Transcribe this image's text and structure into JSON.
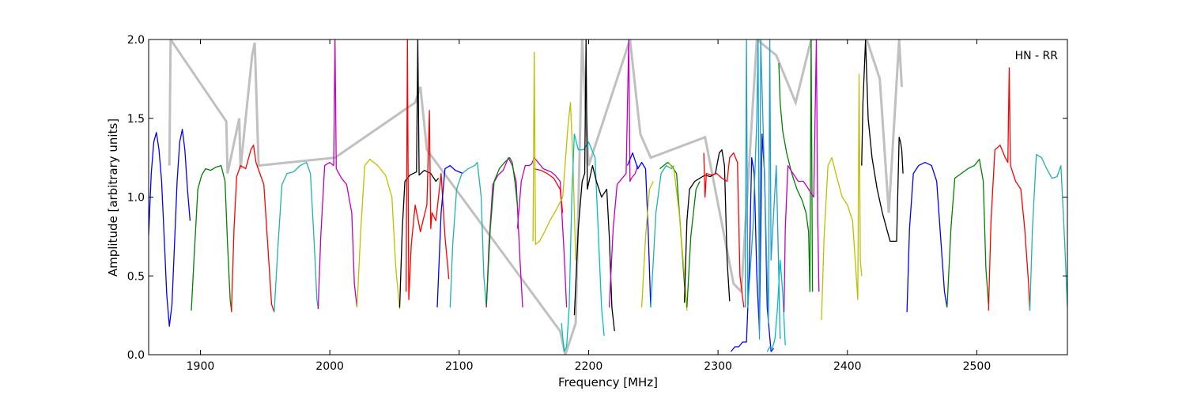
{
  "chart_data": {
    "type": "line",
    "title": "",
    "xlabel": "Frequency [MHz]",
    "ylabel": "Amplitude [arbitrary units]",
    "xlim": [
      1860,
      2570
    ],
    "ylim": [
      0.0,
      2.0
    ],
    "xticks": [
      1900,
      2000,
      2100,
      2200,
      2300,
      2400,
      2500
    ],
    "xtick_labels": [
      "1900",
      "2000",
      "2100",
      "2200",
      "2300",
      "2400",
      "2500"
    ],
    "yticks": [
      0.0,
      0.5,
      1.0,
      1.5,
      2.0
    ],
    "ytick_labels": [
      "0.0",
      "0.5",
      "1.0",
      "1.5",
      "2.0"
    ],
    "annotation": "HN - RR",
    "grid": false,
    "legend": "none",
    "background_band": {
      "color": "#c0c0c0",
      "x": [
        1876,
        1877,
        1920,
        1921,
        1930,
        1931,
        1940,
        1942,
        1945,
        2004,
        2066,
        2070,
        2075,
        2178,
        2182,
        2190,
        2195,
        2200,
        2232,
        2240,
        2248,
        2290,
        2312,
        2318,
        2330,
        2345,
        2360,
        2372,
        2408,
        2415,
        2425,
        2432,
        2440,
        2442
      ],
      "y": [
        1.2,
        2.0,
        1.48,
        1.15,
        1.5,
        1.18,
        1.9,
        1.98,
        1.2,
        1.25,
        1.6,
        1.7,
        1.3,
        0.15,
        0.0,
        0.2,
        2.0,
        1.2,
        2.0,
        1.4,
        1.25,
        1.38,
        0.45,
        0.4,
        2.0,
        1.9,
        1.6,
        2.0,
        2.0,
        2.0,
        1.75,
        0.9,
        2.0,
        1.7
      ]
    },
    "series": [
      {
        "color": "#0000ff",
        "x": [
          1860,
          1862,
          1864,
          1866,
          1868,
          1870,
          1872,
          1874,
          1876,
          1878,
          1880,
          1882,
          1884,
          1886,
          1888,
          1890,
          1892
        ],
        "y": [
          0.76,
          1.15,
          1.35,
          1.41,
          1.3,
          1.1,
          0.75,
          0.38,
          0.18,
          0.32,
          0.7,
          1.1,
          1.35,
          1.43,
          1.3,
          1.05,
          0.85
        ]
      },
      {
        "color": "#008000",
        "x": [
          1893,
          1895,
          1898,
          1901,
          1904,
          1908,
          1912,
          1916,
          1919,
          1921,
          1923,
          1924
        ],
        "y": [
          0.28,
          0.6,
          1.05,
          1.14,
          1.18,
          1.17,
          1.19,
          1.2,
          1.1,
          0.7,
          0.35,
          0.28
        ]
      },
      {
        "color": "#ff0000",
        "x": [
          1924,
          1926,
          1928,
          1931,
          1935,
          1939,
          1941,
          1943,
          1946,
          1949,
          1952,
          1955,
          1957
        ],
        "y": [
          0.27,
          0.8,
          1.13,
          1.2,
          1.18,
          1.3,
          1.33,
          1.22,
          1.15,
          1.08,
          0.7,
          0.32,
          0.27
        ]
      },
      {
        "color": "#20b2aa",
        "x": [
          1957,
          1960,
          1963,
          1967,
          1972,
          1977,
          1982,
          1985,
          1988,
          1990,
          1991
        ],
        "y": [
          0.27,
          0.7,
          1.08,
          1.15,
          1.16,
          1.2,
          1.22,
          1.15,
          0.7,
          0.35,
          0.29
        ]
      },
      {
        "color": "#bf00bf",
        "x": [
          1991,
          1993,
          1996,
          2000,
          2003,
          2004,
          2005,
          2009,
          2013,
          2017,
          2019,
          2021
        ],
        "y": [
          0.29,
          0.75,
          1.2,
          1.22,
          1.2,
          2.0,
          1.18,
          1.12,
          1.08,
          0.9,
          0.45,
          0.3
        ]
      },
      {
        "color": "#bfbf00",
        "x": [
          2021,
          2024,
          2027,
          2031,
          2037,
          2043,
          2048,
          2051,
          2054
        ],
        "y": [
          0.3,
          0.8,
          1.2,
          1.24,
          1.2,
          1.14,
          1.0,
          0.55,
          0.29
        ]
      },
      {
        "color": "#000000",
        "x": [
          2054,
          2056,
          2058,
          2062,
          2067,
          2068,
          2069,
          2073,
          2078,
          2082,
          2084
        ],
        "y": [
          0.3,
          0.8,
          1.1,
          1.14,
          1.16,
          2.0,
          1.14,
          1.17,
          1.15,
          1.1,
          1.12
        ]
      },
      {
        "color": "#ff0000",
        "x": [
          2059,
          2060,
          2061,
          2063,
          2066,
          2070,
          2072,
          2075,
          2077,
          2078,
          2079,
          2082,
          2086,
          2089,
          2092
        ],
        "y": [
          0.4,
          2.0,
          0.35,
          0.7,
          0.95,
          0.78,
          0.85,
          0.95,
          1.55,
          0.8,
          0.9,
          0.85,
          1.15,
          0.75,
          0.48
        ]
      },
      {
        "color": "#0000ff",
        "x": [
          2083,
          2086,
          2089,
          2093,
          2097,
          2100,
          2103
        ],
        "y": [
          0.3,
          0.9,
          1.18,
          1.2,
          1.17,
          1.16,
          1.15
        ]
      },
      {
        "color": "#20b2aa",
        "x": [
          2093,
          2095,
          2098,
          2102,
          2107,
          2112,
          2114,
          2117,
          2119,
          2121
        ],
        "y": [
          0.3,
          0.7,
          1.05,
          1.15,
          1.18,
          1.2,
          1.22,
          1.0,
          0.5,
          0.3
        ]
      },
      {
        "color": "#bf00bf",
        "x": [
          2121,
          2123,
          2126,
          2130,
          2134,
          2138,
          2141,
          2144,
          2147,
          2149
        ],
        "y": [
          0.3,
          0.7,
          1.08,
          1.14,
          1.17,
          1.25,
          1.2,
          1.1,
          0.6,
          0.3
        ]
      },
      {
        "color": "#008000",
        "x": [
          2121,
          2124,
          2127,
          2131,
          2135,
          2139,
          2141,
          2143,
          2145
        ],
        "y": [
          0.32,
          0.8,
          1.1,
          1.18,
          1.22,
          1.25,
          1.22,
          1.1,
          0.95
        ]
      },
      {
        "color": "#bf00bf",
        "x": [
          2145,
          2148,
          2151,
          2154,
          2156,
          2158,
          2161,
          2165,
          2168,
          2171,
          2174,
          2178,
          2181,
          2183
        ],
        "y": [
          0.8,
          1.1,
          1.2,
          1.2,
          1.21,
          1.25,
          1.22,
          1.18,
          1.17,
          1.16,
          1.14,
          1.1,
          0.65,
          0.3
        ]
      },
      {
        "color": "#ff0000",
        "x": [
          2158,
          2163,
          2168,
          2173,
          2178,
          2180
        ],
        "y": [
          1.18,
          1.17,
          1.15,
          1.12,
          1.05,
          0.9
        ]
      },
      {
        "color": "#bfbf00",
        "x": [
          2157,
          2158,
          2159,
          2162,
          2166,
          2170,
          2175,
          2180,
          2184,
          2186,
          2188,
          2190
        ],
        "y": [
          0.72,
          1.92,
          0.7,
          0.72,
          0.78,
          0.85,
          0.92,
          1.0,
          1.45,
          1.6,
          1.2,
          0.6
        ]
      },
      {
        "color": "#00bfbf",
        "x": [
          2179,
          2181,
          2183,
          2185,
          2187,
          2189,
          2192,
          2196,
          2200,
          2205,
          2210,
          2212
        ],
        "y": [
          0.2,
          0.02,
          0.05,
          0.3,
          1.0,
          1.4,
          1.3,
          1.3,
          1.35,
          1.25,
          0.3,
          0.12
        ]
      },
      {
        "color": "#000000",
        "x": [
          2189,
          2192,
          2195,
          2197,
          2198,
          2199,
          2203,
          2206,
          2210,
          2214,
          2216,
          2218,
          2220
        ],
        "y": [
          0.25,
          0.8,
          1.1,
          1.15,
          2.0,
          1.05,
          1.2,
          1.1,
          1.0,
          1.05,
          0.75,
          0.3,
          0.15
        ]
      },
      {
        "color": "#bf00bf",
        "x": [
          2216,
          2219,
          2222,
          2226,
          2229,
          2231,
          2232,
          2233,
          2236,
          2238
        ],
        "y": [
          0.3,
          0.8,
          1.08,
          1.12,
          1.15,
          2.0,
          1.1,
          1.12,
          1.15,
          1.2
        ]
      },
      {
        "color": "#0000ff",
        "x": [
          2230,
          2234,
          2238,
          2241,
          2244,
          2246,
          2248
        ],
        "y": [
          1.2,
          1.28,
          1.18,
          1.22,
          1.18,
          0.8,
          0.3
        ]
      },
      {
        "color": "#bfbf00",
        "x": [
          2241,
          2244,
          2247,
          2250
        ],
        "y": [
          0.3,
          0.75,
          1.05,
          1.1
        ]
      },
      {
        "color": "#20b2aa",
        "x": [
          2248,
          2252,
          2256,
          2260,
          2264,
          2266
        ],
        "y": [
          0.3,
          0.9,
          1.15,
          1.2,
          1.18,
          1.2
        ]
      },
      {
        "color": "#008000",
        "x": [
          2255,
          2258,
          2261,
          2264,
          2268,
          2271,
          2274,
          2276
        ],
        "y": [
          1.18,
          1.2,
          1.22,
          1.2,
          1.15,
          0.8,
          0.45,
          0.3
        ]
      },
      {
        "color": "#bfbf00",
        "x": [
          2262,
          2266,
          2270,
          2274,
          2276
        ],
        "y": [
          1.22,
          1.17,
          0.9,
          0.5,
          0.28
        ]
      },
      {
        "color": "#000000",
        "x": [
          2274,
          2276,
          2278,
          2282,
          2286,
          2290,
          2294,
          2298,
          2301,
          2303,
          2305,
          2307,
          2309
        ],
        "y": [
          0.33,
          0.85,
          1.05,
          1.1,
          1.12,
          1.14,
          1.13,
          1.15,
          1.28,
          1.3,
          1.2,
          0.6,
          0.34
        ]
      },
      {
        "color": "#008000",
        "x": [
          2276,
          2279,
          2283,
          2286
        ],
        "y": [
          0.3,
          0.75,
          1.05,
          1.1
        ]
      },
      {
        "color": "#ff0000",
        "x": [
          2289,
          2290,
          2291,
          2295,
          2299,
          2303,
          2307,
          2309,
          2312,
          2315,
          2317,
          2320
        ],
        "y": [
          1.28,
          1.0,
          1.15,
          1.14,
          1.15,
          1.12,
          1.1,
          1.25,
          1.28,
          1.22,
          0.5,
          0.3
        ]
      },
      {
        "color": "#0000ff",
        "x": [
          2310,
          2313,
          2316,
          2319,
          2322,
          2324,
          2326,
          2328,
          2330,
          2332,
          2334,
          2336,
          2338,
          2341,
          2343
        ],
        "y": [
          0.02,
          0.05,
          0.05,
          0.08,
          0.08,
          0.5,
          1.25,
          1.15,
          0.5,
          0.15,
          1.4,
          1.15,
          0.3,
          0.02,
          0.04
        ]
      },
      {
        "color": "#1fa0c8",
        "x": [
          2321,
          2322,
          2323,
          2327,
          2330,
          2331,
          2332,
          2333,
          2335,
          2339,
          2340,
          2341,
          2345,
          2347,
          2348
        ],
        "y": [
          0.3,
          2.0,
          0.3,
          0.8,
          1.5,
          2.0,
          0.1,
          2.0,
          1.4,
          0.2,
          2.0,
          0.6,
          1.2,
          0.5,
          0.1
        ]
      },
      {
        "color": "#00bfbf",
        "x": [
          2338,
          2340,
          2342,
          2344,
          2346,
          2348,
          2350,
          2352
        ],
        "y": [
          0.02,
          0.05,
          0.04,
          0.1,
          0.3,
          0.6,
          0.4,
          0.06
        ]
      },
      {
        "color": "#008000",
        "x": [
          2347,
          2348,
          2350,
          2353,
          2357,
          2361,
          2365,
          2368,
          2370,
          2371,
          2372,
          2373
        ],
        "y": [
          1.85,
          1.6,
          1.42,
          1.28,
          1.15,
          1.05,
          0.98,
          0.9,
          0.78,
          0.4,
          2.0,
          0.4
        ]
      },
      {
        "color": "#bf00bf",
        "x": [
          2351,
          2352,
          2354,
          2358,
          2362,
          2366,
          2370,
          2374,
          2376,
          2377,
          2378
        ],
        "y": [
          0.27,
          0.8,
          1.2,
          1.15,
          1.1,
          1.1,
          1.05,
          1.0,
          2.0,
          0.9,
          0.4
        ]
      },
      {
        "color": "#bfbf00",
        "x": [
          2380,
          2382,
          2385,
          2388,
          2392,
          2396,
          2400,
          2404,
          2406,
          2408,
          2409,
          2410,
          2411
        ],
        "y": [
          0.22,
          0.75,
          1.2,
          1.25,
          1.12,
          1.0,
          0.95,
          0.85,
          0.6,
          0.35,
          1.78,
          0.6,
          0.5
        ]
      },
      {
        "color": "#000000",
        "x": [
          2411,
          2412,
          2413,
          2414,
          2416,
          2419,
          2423,
          2427,
          2431,
          2433,
          2435,
          2438,
          2440,
          2441,
          2442,
          2443
        ],
        "y": [
          1.2,
          1.6,
          1.8,
          2.0,
          1.5,
          1.25,
          1.05,
          0.9,
          0.78,
          0.72,
          0.72,
          0.72,
          1.38,
          1.35,
          1.3,
          1.15
        ]
      },
      {
        "color": "#0000ff",
        "x": [
          2446,
          2448,
          2451,
          2455,
          2460,
          2465,
          2469,
          2472,
          2475,
          2477
        ],
        "y": [
          0.27,
          0.8,
          1.15,
          1.2,
          1.22,
          1.2,
          1.1,
          0.75,
          0.4,
          0.3
        ]
      },
      {
        "color": "#008000",
        "x": [
          2477,
          2480,
          2483,
          2488,
          2493,
          2498,
          2502,
          2505,
          2507,
          2509
        ],
        "y": [
          0.3,
          0.8,
          1.12,
          1.15,
          1.18,
          1.2,
          1.24,
          1.1,
          0.55,
          0.32
        ]
      },
      {
        "color": "#ff0000",
        "x": [
          2509,
          2511,
          2514,
          2518,
          2522,
          2524,
          2525,
          2526,
          2530,
          2534,
          2537,
          2540,
          2541
        ],
        "y": [
          0.28,
          0.85,
          1.3,
          1.33,
          1.25,
          1.22,
          1.82,
          1.2,
          1.1,
          1.05,
          0.8,
          0.45,
          0.28
        ]
      },
      {
        "color": "#20b2aa",
        "x": [
          2541,
          2543,
          2546,
          2550,
          2554,
          2558,
          2562,
          2565,
          2568,
          2570
        ],
        "y": [
          0.28,
          0.8,
          1.27,
          1.25,
          1.18,
          1.12,
          1.13,
          1.2,
          0.7,
          0.3
        ]
      }
    ]
  }
}
